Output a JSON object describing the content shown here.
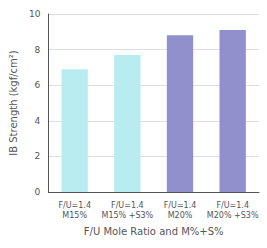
{
  "chart_data": {
    "type": "bar",
    "categories": [
      "F/U=1.4\nM15%",
      "F/U=1.4\nM15% +S3%",
      "F/U=1.4\nM20%",
      "F/U=1.4\nM20% +S3%"
    ],
    "values": [
      6.9,
      7.7,
      8.8,
      9.1
    ],
    "colors": [
      "#b8ecf0",
      "#b8ecf0",
      "#9090cc",
      "#9090cc"
    ],
    "xlabel": "F/U Mole Ratio and M%+S%",
    "ylabel": "IB Strength (kgf/cm²)",
    "ylim": [
      0,
      10
    ],
    "yticks": [
      0,
      2,
      4,
      6,
      8,
      10
    ],
    "grid": true
  }
}
